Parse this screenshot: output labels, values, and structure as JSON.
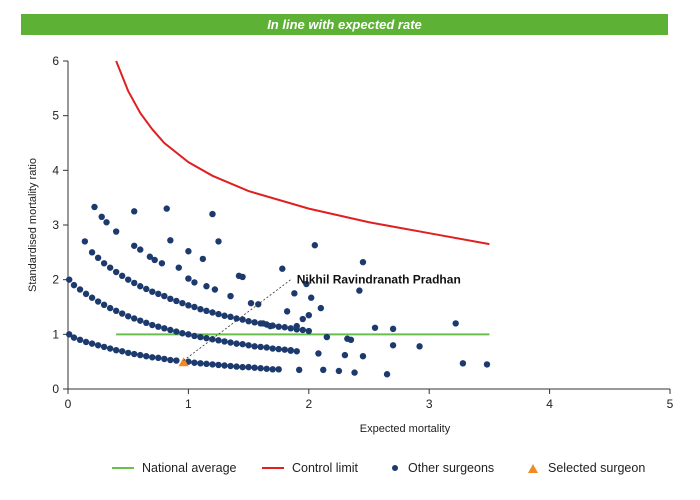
{
  "banner": {
    "text": "In line with expected rate",
    "color": "#5db235"
  },
  "colors": {
    "national": "#6abf4b",
    "control": "#e02020",
    "others": "#1c3a6e",
    "selected": "#f08a24"
  },
  "chart_data": {
    "type": "scatter",
    "xlabel": "Expected mortality",
    "ylabel": "Standardised mortality ratio",
    "xlim": [
      0,
      5
    ],
    "ylim": [
      0,
      6
    ],
    "xticks": [
      0,
      1,
      2,
      3,
      4,
      5
    ],
    "yticks": [
      0,
      1,
      2,
      3,
      4,
      5,
      6
    ],
    "grid": false,
    "legend_position": "bottom",
    "series": [
      {
        "name": "National average",
        "kind": "line",
        "x": [
          0.4,
          3.5
        ],
        "y": [
          1.0,
          1.0
        ]
      },
      {
        "name": "Control limit",
        "kind": "line",
        "x": [
          0.4,
          0.5,
          0.6,
          0.7,
          0.8,
          1.0,
          1.2,
          1.5,
          2.0,
          2.5,
          3.0,
          3.5
        ],
        "y": [
          6.0,
          5.45,
          5.05,
          4.75,
          4.5,
          4.15,
          3.9,
          3.62,
          3.3,
          3.05,
          2.85,
          2.65
        ]
      },
      {
        "name": "Other surgeons",
        "kind": "scatter",
        "points": [
          [
            0.01,
            1.0
          ],
          [
            0.05,
            0.94
          ],
          [
            0.1,
            0.9
          ],
          [
            0.15,
            0.86
          ],
          [
            0.2,
            0.83
          ],
          [
            0.25,
            0.8
          ],
          [
            0.3,
            0.77
          ],
          [
            0.35,
            0.74
          ],
          [
            0.4,
            0.71
          ],
          [
            0.45,
            0.69
          ],
          [
            0.5,
            0.66
          ],
          [
            0.55,
            0.64
          ],
          [
            0.6,
            0.62
          ],
          [
            0.65,
            0.6
          ],
          [
            0.7,
            0.58
          ],
          [
            0.75,
            0.57
          ],
          [
            0.8,
            0.55
          ],
          [
            0.85,
            0.53
          ],
          [
            0.9,
            0.52
          ],
          [
            1.0,
            0.5
          ],
          [
            1.05,
            0.48
          ],
          [
            1.1,
            0.47
          ],
          [
            1.15,
            0.46
          ],
          [
            1.2,
            0.45
          ],
          [
            1.25,
            0.44
          ],
          [
            1.3,
            0.43
          ],
          [
            1.35,
            0.42
          ],
          [
            1.4,
            0.41
          ],
          [
            1.45,
            0.4
          ],
          [
            1.5,
            0.4
          ],
          [
            1.55,
            0.39
          ],
          [
            1.6,
            0.38
          ],
          [
            1.65,
            0.37
          ],
          [
            1.7,
            0.36
          ],
          [
            1.75,
            0.36
          ],
          [
            0.01,
            2.0
          ],
          [
            0.05,
            1.9
          ],
          [
            0.1,
            1.82
          ],
          [
            0.15,
            1.74
          ],
          [
            0.2,
            1.67
          ],
          [
            0.25,
            1.6
          ],
          [
            0.3,
            1.54
          ],
          [
            0.35,
            1.48
          ],
          [
            0.4,
            1.43
          ],
          [
            0.45,
            1.38
          ],
          [
            0.5,
            1.33
          ],
          [
            0.55,
            1.29
          ],
          [
            0.6,
            1.25
          ],
          [
            0.65,
            1.21
          ],
          [
            0.7,
            1.17
          ],
          [
            0.75,
            1.14
          ],
          [
            0.8,
            1.11
          ],
          [
            0.85,
            1.08
          ],
          [
            0.9,
            1.05
          ],
          [
            0.95,
            1.02
          ],
          [
            1.0,
            1.0
          ],
          [
            1.05,
            0.97
          ],
          [
            1.1,
            0.95
          ],
          [
            1.15,
            0.93
          ],
          [
            1.2,
            0.91
          ],
          [
            1.25,
            0.89
          ],
          [
            1.3,
            0.87
          ],
          [
            1.35,
            0.85
          ],
          [
            1.4,
            0.83
          ],
          [
            1.45,
            0.82
          ],
          [
            1.5,
            0.8
          ],
          [
            1.55,
            0.78
          ],
          [
            1.6,
            0.77
          ],
          [
            1.65,
            0.76
          ],
          [
            1.7,
            0.74
          ],
          [
            1.75,
            0.73
          ],
          [
            1.8,
            0.72
          ],
          [
            1.85,
            0.71
          ],
          [
            1.9,
            0.69
          ],
          [
            0.2,
            2.5
          ],
          [
            0.25,
            2.4
          ],
          [
            0.3,
            2.3
          ],
          [
            0.35,
            2.22
          ],
          [
            0.4,
            2.14
          ],
          [
            0.45,
            2.07
          ],
          [
            0.5,
            2.0
          ],
          [
            0.55,
            1.94
          ],
          [
            0.6,
            1.88
          ],
          [
            0.65,
            1.83
          ],
          [
            0.7,
            1.78
          ],
          [
            0.75,
            1.74
          ],
          [
            0.8,
            1.7
          ],
          [
            0.85,
            1.65
          ],
          [
            0.9,
            1.61
          ],
          [
            0.95,
            1.57
          ],
          [
            1.0,
            1.53
          ],
          [
            1.05,
            1.5
          ],
          [
            1.1,
            1.46
          ],
          [
            1.15,
            1.43
          ],
          [
            1.2,
            1.4
          ],
          [
            1.25,
            1.37
          ],
          [
            1.3,
            1.34
          ],
          [
            1.35,
            1.32
          ],
          [
            1.4,
            1.29
          ],
          [
            1.45,
            1.27
          ],
          [
            1.5,
            1.24
          ],
          [
            1.55,
            1.22
          ],
          [
            1.6,
            1.2
          ],
          [
            1.65,
            1.18
          ],
          [
            1.7,
            1.16
          ],
          [
            1.75,
            1.14
          ],
          [
            1.8,
            1.13
          ],
          [
            1.85,
            1.11
          ],
          [
            1.9,
            1.09
          ],
          [
            1.95,
            1.08
          ],
          [
            2.0,
            1.06
          ],
          [
            0.14,
            2.7
          ],
          [
            0.22,
            3.33
          ],
          [
            0.28,
            3.15
          ],
          [
            0.32,
            3.05
          ],
          [
            0.4,
            2.88
          ],
          [
            0.55,
            3.25
          ],
          [
            0.55,
            2.62
          ],
          [
            0.6,
            2.55
          ],
          [
            0.68,
            2.42
          ],
          [
            0.72,
            2.36
          ],
          [
            0.78,
            2.3
          ],
          [
            0.82,
            3.3
          ],
          [
            0.85,
            2.72
          ],
          [
            0.92,
            2.22
          ],
          [
            1.0,
            2.52
          ],
          [
            1.0,
            2.02
          ],
          [
            1.05,
            1.95
          ],
          [
            1.12,
            2.38
          ],
          [
            1.15,
            1.88
          ],
          [
            1.2,
            3.2
          ],
          [
            1.22,
            1.82
          ],
          [
            1.25,
            2.7
          ],
          [
            1.35,
            1.7
          ],
          [
            1.42,
            2.07
          ],
          [
            1.45,
            2.05
          ],
          [
            1.52,
            1.57
          ],
          [
            1.58,
            1.55
          ],
          [
            1.62,
            1.2
          ],
          [
            1.68,
            1.15
          ],
          [
            1.78,
            2.2
          ],
          [
            1.82,
            1.42
          ],
          [
            1.85,
            0.7
          ],
          [
            1.88,
            1.75
          ],
          [
            1.9,
            1.15
          ],
          [
            1.92,
            0.35
          ],
          [
            1.98,
            1.92
          ],
          [
            2.0,
            1.35
          ],
          [
            2.02,
            1.67
          ],
          [
            2.05,
            2.63
          ],
          [
            2.08,
            0.65
          ],
          [
            2.12,
            0.35
          ],
          [
            2.15,
            0.95
          ],
          [
            2.25,
            0.33
          ],
          [
            2.3,
            0.62
          ],
          [
            2.32,
            0.92
          ],
          [
            2.35,
            0.9
          ],
          [
            2.42,
            1.8
          ],
          [
            2.45,
            0.6
          ],
          [
            2.45,
            2.32
          ],
          [
            2.55,
            1.12
          ],
          [
            2.65,
            0.27
          ],
          [
            2.7,
            1.1
          ],
          [
            2.7,
            0.8
          ],
          [
            2.92,
            0.78
          ],
          [
            3.22,
            1.2
          ],
          [
            3.28,
            0.47
          ],
          [
            3.48,
            0.45
          ],
          [
            2.1,
            1.48
          ],
          [
            1.95,
            1.28
          ],
          [
            2.38,
            0.3
          ]
        ]
      },
      {
        "name": "Selected surgeon",
        "kind": "marker",
        "x": 0.96,
        "y": 0.49
      }
    ],
    "annotation": {
      "text": "Nikhil Ravindranath Pradhan",
      "x_from": 0.96,
      "y_from": 0.52,
      "x_to": 1.85,
      "y_to": 2.0
    }
  }
}
